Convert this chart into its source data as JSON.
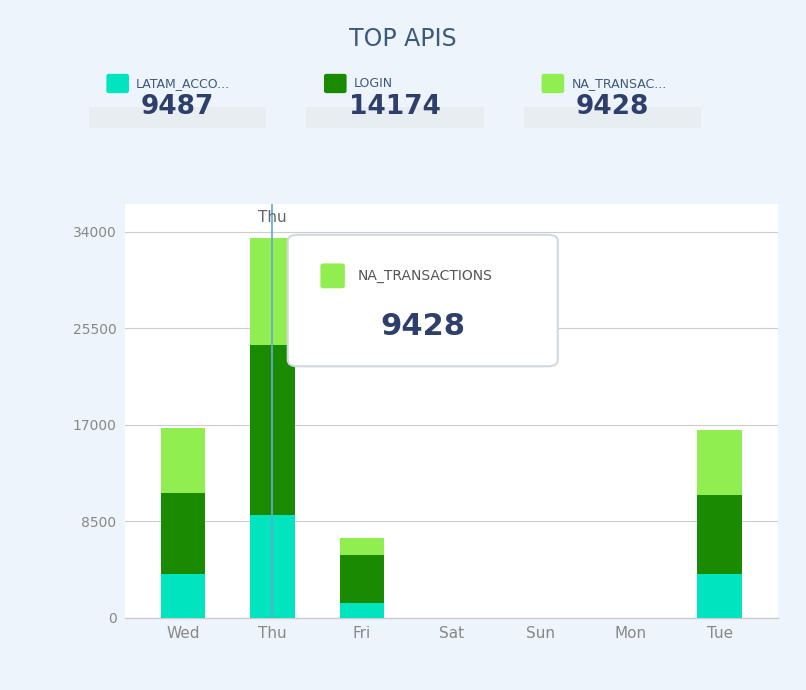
{
  "title": "TOP APIS",
  "categories": [
    "Wed",
    "Thu",
    "Fri",
    "Sat",
    "Sun",
    "Mon",
    "Tue"
  ],
  "series": [
    {
      "name": "LATAM_ACCO...",
      "color": "#00E5C0",
      "total": 9487,
      "values": [
        3800,
        9000,
        1300,
        0,
        0,
        0,
        3800
      ]
    },
    {
      "name": "LOGIN",
      "color": "#1A8A00",
      "total": 14174,
      "values": [
        7200,
        15000,
        4200,
        0,
        0,
        0,
        7000
      ]
    },
    {
      "name": "NA_TRANSAC...",
      "color": "#90EE50",
      "total": 9428,
      "values": [
        5700,
        9428,
        1500,
        0,
        0,
        0,
        5700
      ]
    }
  ],
  "yticks": [
    0,
    8500,
    17000,
    25500,
    34000
  ],
  "ylim": [
    0,
    36500
  ],
  "background_color": "#eef4fb",
  "plot_background": "#ffffff",
  "border_color": "#a8c8e8",
  "tooltip_api": "NA_TRANSACTIONS",
  "tooltip_value": "9428",
  "tooltip_bar_index": 1,
  "highlight_bar_index": 1,
  "highlight_label": "Thu",
  "title_color": "#3d5a7a",
  "label_color": "#3d5a7a",
  "number_color": "#2d3f6a",
  "tick_color": "#888888"
}
